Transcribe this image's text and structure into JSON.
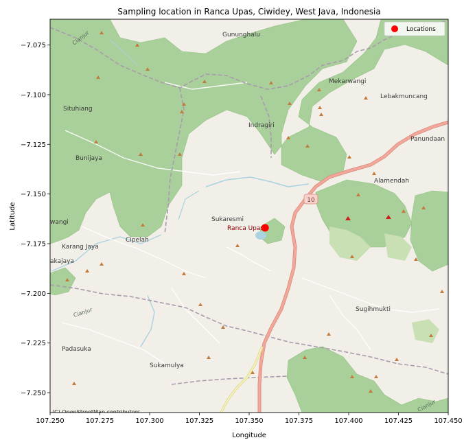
{
  "title": "Sampling location in Ranca Upas, Ciwidey, West Java, Indonesia",
  "xlabel": "Longitude",
  "ylabel": "Latitude",
  "xlim": [
    107.25,
    107.45
  ],
  "ylim": [
    -7.26,
    -7.062
  ],
  "xticks": [
    "107.250",
    "107.275",
    "107.300",
    "107.325",
    "107.350",
    "107.375",
    "107.400",
    "107.425",
    "107.450"
  ],
  "yticks": [
    "−7.075",
    "−7.100",
    "−7.125",
    "−7.150",
    "−7.175",
    "−7.200",
    "−7.225",
    "−7.250"
  ],
  "legend": {
    "label": "Locations",
    "color": "#ff0000",
    "position": "top-right"
  },
  "attribution": "(C) OpenStreetMap contributors",
  "road_shield": "10",
  "sample_location": {
    "label": "Ranca Upas",
    "lon": 107.358,
    "lat": -7.167,
    "color": "#ff0000"
  },
  "map_places": {
    "gununghalu": "Gununghalu",
    "mekarwangi": "Mekarwangi",
    "lebakmuncang": "Lebakmuncang",
    "situhiang": "Situhiang",
    "indragiri": "Indragiri",
    "panundaan": "Panundaan",
    "bunijaya": "Bunijaya",
    "alamendah": "Alamendah",
    "sukaresmi": "Sukaresmi",
    "wangi": "wangi",
    "karangjaya": "Karang Jaya",
    "cipelah": "Cipelah",
    "akajaya": "akajaya",
    "sugihmukti": "Sugihmukti",
    "padasuka": "Padasuka",
    "sukamulya": "Sukamulya",
    "cianjur_top": "Cianjur",
    "cianjur_mid": "Cianjur",
    "cianjur_right": "Cianjur"
  },
  "chart_data": {
    "type": "scatter",
    "title": "Sampling location in Ranca Upas, Ciwidey, West Java, Indonesia",
    "xlabel": "Longitude",
    "ylabel": "Latitude",
    "xlim": [
      107.25,
      107.45
    ],
    "ylim": [
      -7.26,
      -7.062
    ],
    "series": [
      {
        "name": "Locations",
        "color": "#ff0000",
        "points": [
          {
            "x": 107.358,
            "y": -7.167,
            "label": "Ranca Upas"
          }
        ]
      }
    ],
    "legend": "top-right",
    "grid": false,
    "basemap": "OpenStreetMap"
  }
}
